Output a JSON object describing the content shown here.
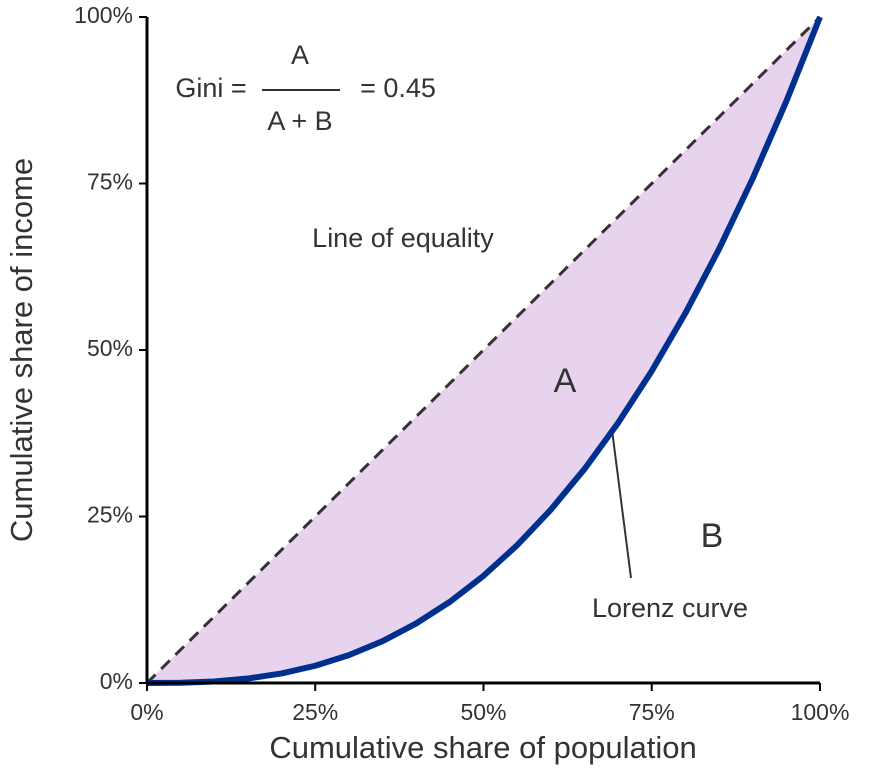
{
  "chart_data": {
    "type": "lorenz",
    "x_label": "Cumulative share of population",
    "y_label": "Cumulative share of income",
    "x": [
      0,
      5,
      10,
      15,
      20,
      25,
      30,
      35,
      40,
      45,
      50,
      55,
      60,
      65,
      70,
      75,
      80,
      85,
      90,
      95,
      100
    ],
    "series": [
      {
        "color": "#333333",
        "values": [
          0,
          5,
          10,
          15,
          20,
          25,
          30,
          35,
          40,
          45,
          50,
          55,
          60,
          65,
          70,
          75,
          80,
          85,
          90,
          95,
          100
        ]
      },
      {
        "color": "#00308f",
        "values": [
          0,
          0.04,
          0.23,
          0.67,
          1.44,
          2.59,
          4.18,
          6.28,
          8.94,
          12.19,
          16.09,
          20.69,
          26.02,
          32.12,
          39.06,
          46.84,
          55.53,
          65.16,
          75.75,
          87.35,
          100
        ]
      }
    ],
    "area_color": "#e8d3ee",
    "xlim": [
      0,
      100
    ],
    "ylim": [
      0,
      100
    ],
    "xticks": [
      {
        "value": 0,
        "label": "0%"
      },
      {
        "value": 25,
        "label": "25%"
      },
      {
        "value": 50,
        "label": "50%"
      },
      {
        "value": 75,
        "label": "75%"
      },
      {
        "value": 100,
        "label": "100%"
      }
    ],
    "yticks": [
      {
        "value": 0,
        "label": "0%"
      },
      {
        "value": 25,
        "label": "25%"
      },
      {
        "value": 50,
        "label": "50%"
      },
      {
        "value": 75,
        "label": "75%"
      },
      {
        "value": 100,
        "label": "100%"
      }
    ],
    "annotations": [
      "Line of equality",
      "A",
      "B",
      "Lorenz curve"
    ],
    "formula": {
      "lhs": "Gini =",
      "numerator": "A",
      "denominator": "A + B",
      "rhs": "= 0.45"
    }
  }
}
